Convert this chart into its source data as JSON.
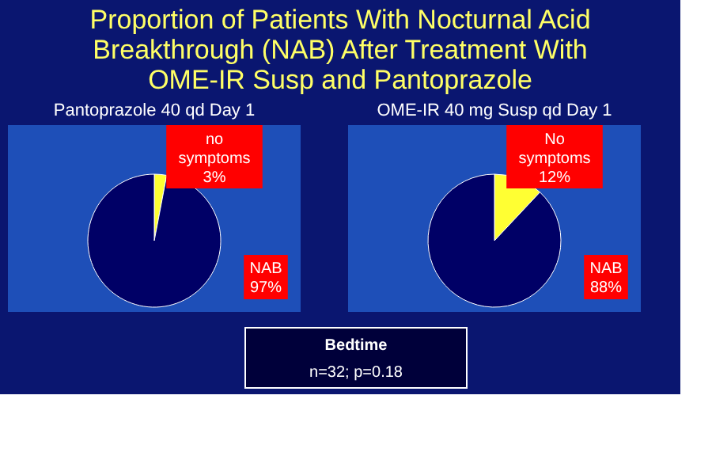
{
  "chart_data": [
    {
      "type": "pie",
      "title": "Proportion of Patients With Nocturnal Acid Breakthrough  (NAB) After Treatment With OME-IR Susp and Pantoprazole",
      "subtitle": "Pantoprazole 40 qd Day 1",
      "categories": [
        "no symptoms",
        "NAB"
      ],
      "values": [
        3,
        97
      ],
      "colors": [
        "#ffff33",
        "#000066"
      ],
      "value_labels": [
        "3%",
        "97%"
      ]
    },
    {
      "type": "pie",
      "title": "OME-IR 40 mg Susp qd Day 1",
      "categories": [
        "No symptoms",
        "NAB"
      ],
      "values": [
        12,
        88
      ],
      "colors": [
        "#ffff33",
        "#000066"
      ],
      "value_labels": [
        "12%",
        "88%"
      ],
      "annotations": [
        "Bedtime",
        "n=32; p=0.18"
      ]
    }
  ]
}
